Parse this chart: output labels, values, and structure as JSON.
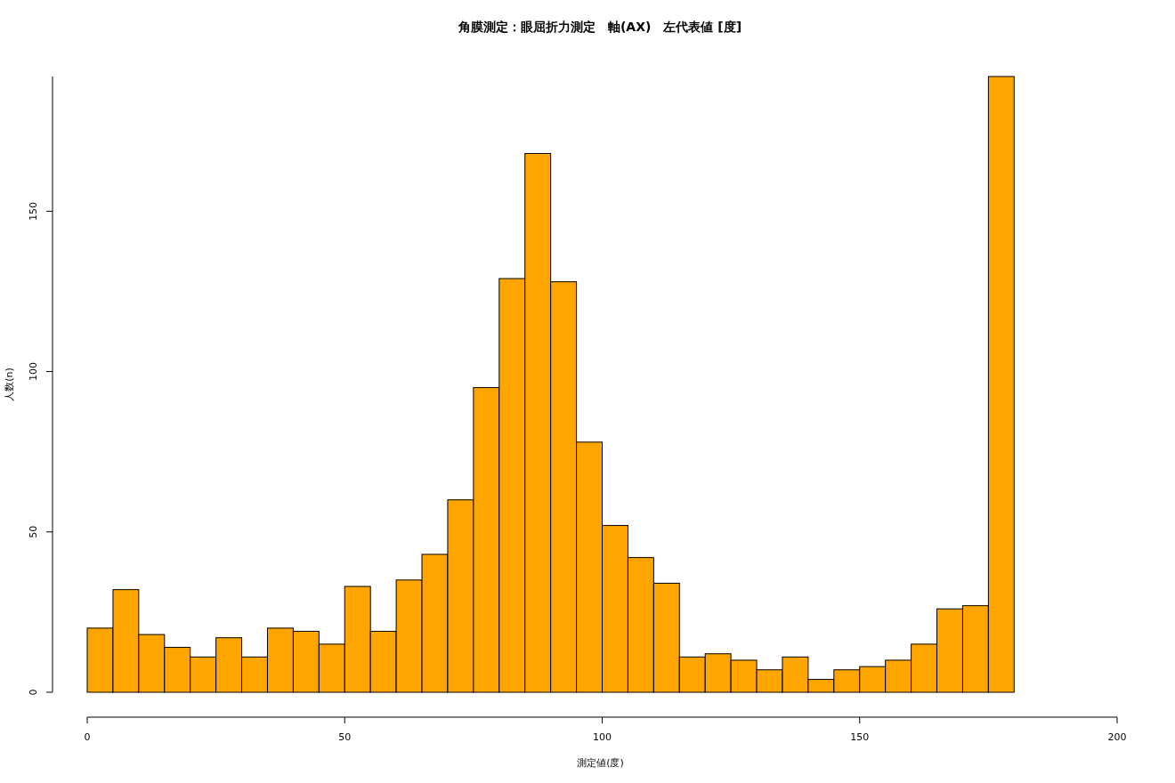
{
  "chart_data": {
    "type": "histogram",
    "title": "角膜測定：眼屈折力測定　軸(AX)　左代表値 [度]",
    "xlabel": "測定値(度)",
    "ylabel": "人数(n)",
    "bins": [
      0,
      5,
      10,
      15,
      20,
      25,
      30,
      35,
      40,
      45,
      50,
      55,
      60,
      65,
      70,
      75,
      80,
      85,
      90,
      95,
      100,
      105,
      110,
      115,
      120,
      125,
      130,
      135,
      140,
      145,
      150,
      155,
      160,
      165,
      170,
      175,
      180
    ],
    "values": [
      20,
      32,
      18,
      14,
      11,
      17,
      11,
      20,
      19,
      15,
      33,
      19,
      35,
      43,
      60,
      95,
      129,
      168,
      128,
      78,
      52,
      42,
      34,
      11,
      12,
      10,
      7,
      11,
      4,
      7,
      8,
      10,
      15,
      26,
      27,
      192
    ],
    "color": "#ffa500",
    "xlim": [
      0,
      200
    ],
    "ylim": [
      0,
      192
    ],
    "xticks": [
      0,
      50,
      100,
      150,
      200
    ],
    "yticks": [
      0,
      50,
      100,
      150
    ]
  }
}
